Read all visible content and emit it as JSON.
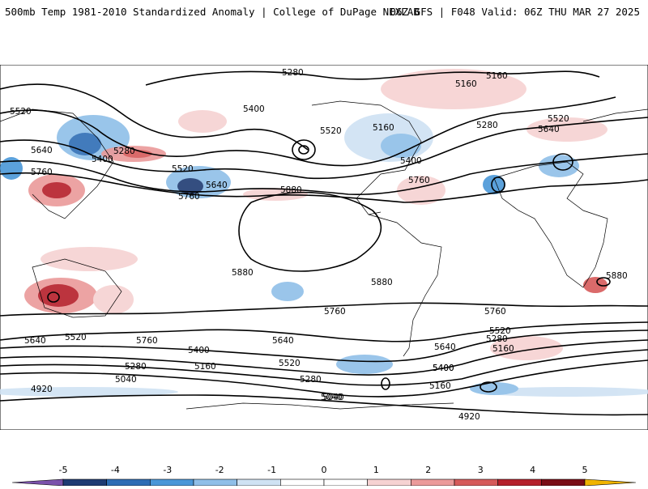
{
  "header": {
    "title_left": "500mb Temp 1981-2010 Standardized Anomaly | College of DuPage NEXLAB",
    "title_right": "06Z GFS | F048 Valid: 06Z THU MAR 27 2025"
  },
  "map": {
    "contour_labels": [
      {
        "text": "5280"
      },
      {
        "text": "5160"
      },
      {
        "text": "5160"
      },
      {
        "text": "5520"
      },
      {
        "text": "5400"
      },
      {
        "text": "5520"
      },
      {
        "text": "5160"
      },
      {
        "text": "5280"
      },
      {
        "text": "5520"
      },
      {
        "text": "5640"
      },
      {
        "text": "5640"
      },
      {
        "text": "5280"
      },
      {
        "text": "5400"
      },
      {
        "text": "5400"
      },
      {
        "text": "5520"
      },
      {
        "text": "5760"
      },
      {
        "text": "5640"
      },
      {
        "text": "5760"
      },
      {
        "text": "5760"
      },
      {
        "text": "5880"
      },
      {
        "text": "5880"
      },
      {
        "text": "5880"
      },
      {
        "text": "5880"
      },
      {
        "text": "5760"
      },
      {
        "text": "5760"
      },
      {
        "text": "5640"
      },
      {
        "text": "5520"
      },
      {
        "text": "5760"
      },
      {
        "text": "5640"
      },
      {
        "text": "5520"
      },
      {
        "text": "5400"
      },
      {
        "text": "5280"
      },
      {
        "text": "5160"
      },
      {
        "text": "5040"
      },
      {
        "text": "5400"
      },
      {
        "text": "5280"
      },
      {
        "text": "5520"
      },
      {
        "text": "5160"
      },
      {
        "text": "5280"
      },
      {
        "text": "5040"
      },
      {
        "text": "5640"
      },
      {
        "text": "5400"
      },
      {
        "text": "5160"
      },
      {
        "text": "4920"
      },
      {
        "text": "5040"
      },
      {
        "text": "4920"
      }
    ]
  },
  "colorbar": {
    "colors": [
      "#7b52ab",
      "#1f3b73",
      "#2e6db5",
      "#4a97d8",
      "#8fbfe8",
      "#cfe2f3",
      "#ffffff",
      "#ffffff",
      "#f6d2d2",
      "#eb9a9a",
      "#d65a5a",
      "#b51f2a",
      "#7a0d16",
      "#f0b400"
    ],
    "ticks": [
      "-5",
      "-4",
      "-3",
      "-2",
      "-1",
      "0",
      "1",
      "2",
      "3",
      "4",
      "5"
    ]
  }
}
